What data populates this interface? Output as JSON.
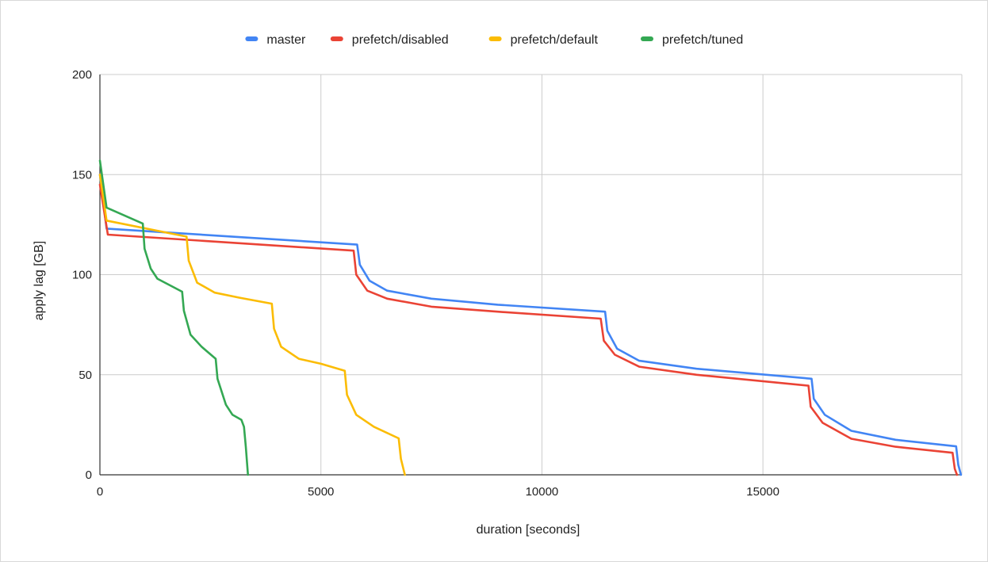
{
  "chart_data": {
    "type": "line",
    "title": "",
    "xlabel": "duration [seconds]",
    "ylabel": "apply lag [GB]",
    "xlim": [
      0,
      19500
    ],
    "ylim": [
      0,
      200
    ],
    "x_ticks": [
      0,
      5000,
      10000,
      15000
    ],
    "x_tick_labels": [
      "0",
      "5000",
      "10000",
      "15000"
    ],
    "y_ticks": [
      0,
      50,
      100,
      150,
      200
    ],
    "y_tick_labels": [
      "0",
      "50",
      "100",
      "150",
      "200"
    ],
    "grid": true,
    "legend_position": "top",
    "series": [
      {
        "name": "master",
        "color": "#4285f4",
        "points": [
          [
            0,
            150
          ],
          [
            150,
            123
          ],
          [
            5820,
            115
          ],
          [
            5880,
            105
          ],
          [
            6100,
            97
          ],
          [
            6500,
            92
          ],
          [
            7500,
            88
          ],
          [
            9000,
            85
          ],
          [
            11430,
            81.5
          ],
          [
            11480,
            72
          ],
          [
            11700,
            63
          ],
          [
            12200,
            57
          ],
          [
            13500,
            53
          ],
          [
            16100,
            48
          ],
          [
            16150,
            38
          ],
          [
            16400,
            30
          ],
          [
            17000,
            22
          ],
          [
            18000,
            17.5
          ],
          [
            19370,
            14.2
          ],
          [
            19420,
            5
          ],
          [
            19480,
            0
          ]
        ]
      },
      {
        "name": "prefetch/disabled",
        "color": "#ea4335",
        "points": [
          [
            0,
            145
          ],
          [
            180,
            120
          ],
          [
            5740,
            112
          ],
          [
            5800,
            100
          ],
          [
            6050,
            92
          ],
          [
            6500,
            88
          ],
          [
            7500,
            84
          ],
          [
            9000,
            81.5
          ],
          [
            11330,
            78
          ],
          [
            11400,
            67
          ],
          [
            11650,
            60
          ],
          [
            12200,
            54
          ],
          [
            13500,
            50
          ],
          [
            16030,
            44.5
          ],
          [
            16080,
            34
          ],
          [
            16350,
            26
          ],
          [
            17000,
            18
          ],
          [
            18000,
            14
          ],
          [
            19290,
            11
          ],
          [
            19340,
            3
          ],
          [
            19390,
            0
          ]
        ]
      },
      {
        "name": "prefetch/default",
        "color": "#fbbc04",
        "points": [
          [
            0,
            150
          ],
          [
            150,
            127
          ],
          [
            1960,
            119
          ],
          [
            2010,
            107
          ],
          [
            2200,
            96
          ],
          [
            2600,
            91
          ],
          [
            3150,
            88.5
          ],
          [
            3890,
            85.5
          ],
          [
            3940,
            73
          ],
          [
            4100,
            64
          ],
          [
            4500,
            58
          ],
          [
            5000,
            55.5
          ],
          [
            5540,
            52
          ],
          [
            5590,
            40
          ],
          [
            5800,
            30
          ],
          [
            6200,
            24
          ],
          [
            6760,
            18.2
          ],
          [
            6810,
            8
          ],
          [
            6900,
            0
          ]
        ]
      },
      {
        "name": "prefetch/tuned",
        "color": "#34a853",
        "points": [
          [
            0,
            157
          ],
          [
            150,
            133.5
          ],
          [
            970,
            125.5
          ],
          [
            1010,
            113
          ],
          [
            1150,
            103
          ],
          [
            1300,
            98
          ],
          [
            1860,
            91.5
          ],
          [
            1900,
            82
          ],
          [
            2050,
            70
          ],
          [
            2300,
            64
          ],
          [
            2620,
            58
          ],
          [
            2660,
            48
          ],
          [
            2850,
            35
          ],
          [
            3000,
            30
          ],
          [
            3200,
            27.5
          ],
          [
            3260,
            24
          ],
          [
            3300,
            14
          ],
          [
            3350,
            0
          ]
        ]
      }
    ]
  }
}
